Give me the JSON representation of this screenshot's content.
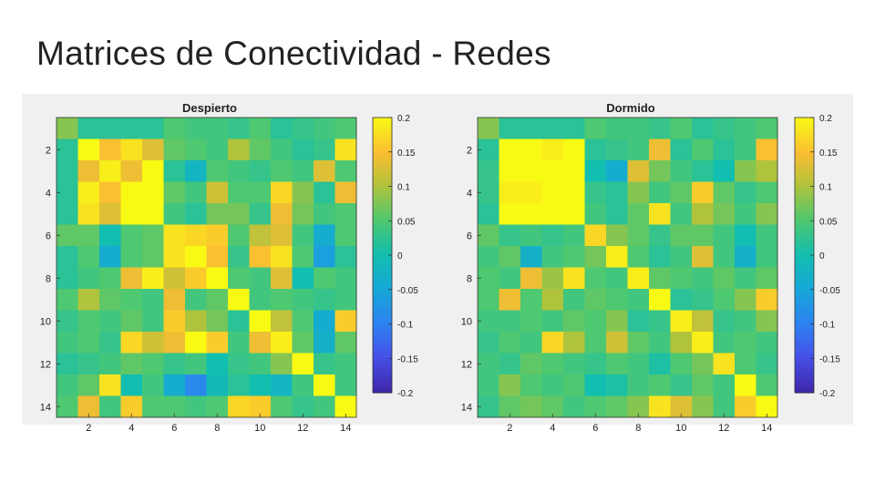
{
  "slide": {
    "title": "Matrices de Conectividad - Redes"
  },
  "chart_data": [
    {
      "type": "heatmap",
      "title": "Despierto",
      "xlabel": "",
      "ylabel": "",
      "x_ticks": [
        "2",
        "4",
        "6",
        "8",
        "10",
        "12",
        "14"
      ],
      "y_ticks": [
        "2",
        "4",
        "6",
        "8",
        "10",
        "12",
        "14"
      ],
      "colorbar_ticks": [
        "0.2",
        "0.15",
        "0.1",
        "0.05",
        "0",
        "-0.05",
        "-0.1",
        "-0.15",
        "-0.2"
      ],
      "clim": [
        -0.2,
        0.2
      ],
      "colormap": "parula",
      "matrix": [
        [
          0.08,
          0.02,
          0.02,
          0.02,
          0.02,
          0.05,
          0.04,
          0.04,
          0.03,
          0.05,
          0.02,
          0.03,
          0.04,
          0.05
        ],
        [
          0.02,
          0.2,
          0.15,
          0.18,
          0.13,
          0.06,
          0.05,
          0.04,
          0.1,
          0.06,
          0.04,
          0.02,
          0.03,
          0.18
        ],
        [
          0.02,
          0.14,
          0.19,
          0.14,
          0.2,
          0.02,
          -0.02,
          0.05,
          0.04,
          0.03,
          0.05,
          0.04,
          0.13,
          0.05
        ],
        [
          0.02,
          0.19,
          0.15,
          0.2,
          0.2,
          0.06,
          0.04,
          0.12,
          0.05,
          0.05,
          0.17,
          0.08,
          0.02,
          0.14
        ],
        [
          0.02,
          0.18,
          0.13,
          0.2,
          0.2,
          0.04,
          0.02,
          0.07,
          0.07,
          0.03,
          0.14,
          0.07,
          0.04,
          0.05
        ],
        [
          0.06,
          0.06,
          0.0,
          0.05,
          0.06,
          0.18,
          0.17,
          0.16,
          0.05,
          0.11,
          0.13,
          0.04,
          -0.04,
          0.05
        ],
        [
          0.02,
          0.05,
          -0.04,
          0.05,
          0.06,
          0.18,
          0.2,
          0.15,
          0.03,
          0.15,
          0.18,
          0.05,
          -0.06,
          0.02
        ],
        [
          0.02,
          0.04,
          0.05,
          0.14,
          0.19,
          0.12,
          0.16,
          0.2,
          0.05,
          0.04,
          0.13,
          0.0,
          0.05,
          0.04
        ],
        [
          0.05,
          0.1,
          0.06,
          0.05,
          0.04,
          0.14,
          0.04,
          0.06,
          0.2,
          0.04,
          0.05,
          0.04,
          0.03,
          0.04
        ],
        [
          0.03,
          0.05,
          0.04,
          0.06,
          0.04,
          0.16,
          0.1,
          0.07,
          0.02,
          0.2,
          0.11,
          0.05,
          -0.04,
          0.16
        ],
        [
          0.04,
          0.05,
          0.03,
          0.17,
          0.12,
          0.14,
          0.2,
          0.16,
          0.04,
          0.14,
          0.19,
          0.06,
          -0.03,
          0.06
        ],
        [
          0.02,
          0.03,
          0.04,
          0.06,
          0.05,
          0.03,
          0.04,
          0.0,
          0.03,
          0.04,
          0.08,
          0.2,
          0.03,
          0.04
        ],
        [
          0.04,
          0.06,
          0.18,
          0.0,
          0.04,
          -0.04,
          -0.09,
          -0.01,
          0.02,
          0.0,
          -0.02,
          0.04,
          0.2,
          0.04
        ],
        [
          0.05,
          0.14,
          0.04,
          0.16,
          0.05,
          0.05,
          0.04,
          0.05,
          0.17,
          0.16,
          0.05,
          0.03,
          0.04,
          0.2
        ]
      ]
    },
    {
      "type": "heatmap",
      "title": "Dormido",
      "xlabel": "",
      "ylabel": "",
      "x_ticks": [
        "2",
        "4",
        "6",
        "8",
        "10",
        "12",
        "14"
      ],
      "y_ticks": [
        "2",
        "4",
        "6",
        "8",
        "10",
        "12",
        "14"
      ],
      "colorbar_ticks": [
        "0.2",
        "0.15",
        "0.1",
        "0.05",
        "0",
        "-0.05",
        "-0.1",
        "-0.15",
        "-0.2"
      ],
      "clim": [
        -0.2,
        0.2
      ],
      "colormap": "parula",
      "matrix": [
        [
          0.08,
          0.02,
          0.02,
          0.02,
          0.02,
          0.05,
          0.04,
          0.04,
          0.03,
          0.05,
          0.02,
          0.03,
          0.04,
          0.05
        ],
        [
          0.02,
          0.2,
          0.2,
          0.19,
          0.2,
          0.02,
          0.03,
          0.04,
          0.14,
          0.02,
          0.05,
          0.02,
          0.04,
          0.15
        ],
        [
          0.03,
          0.2,
          0.2,
          0.2,
          0.2,
          0.0,
          -0.04,
          0.13,
          0.07,
          0.04,
          0.02,
          0.0,
          0.08,
          0.1
        ],
        [
          0.03,
          0.19,
          0.19,
          0.2,
          0.2,
          0.03,
          0.02,
          0.08,
          0.04,
          0.06,
          0.16,
          0.06,
          0.03,
          0.05
        ],
        [
          0.02,
          0.2,
          0.2,
          0.2,
          0.2,
          0.04,
          0.02,
          0.06,
          0.18,
          0.04,
          0.1,
          0.07,
          0.04,
          0.08
        ],
        [
          0.06,
          0.03,
          0.04,
          0.03,
          0.04,
          0.17,
          0.08,
          0.06,
          0.03,
          0.06,
          0.06,
          0.04,
          0.0,
          0.04
        ],
        [
          0.04,
          0.06,
          -0.03,
          0.04,
          0.05,
          0.07,
          0.19,
          0.05,
          0.02,
          0.04,
          0.13,
          0.04,
          -0.03,
          0.04
        ],
        [
          0.05,
          0.04,
          0.14,
          0.09,
          0.18,
          0.05,
          0.04,
          0.19,
          0.06,
          0.05,
          0.04,
          0.06,
          0.04,
          0.06
        ],
        [
          0.05,
          0.14,
          0.05,
          0.1,
          0.04,
          0.06,
          0.05,
          0.04,
          0.2,
          0.02,
          0.03,
          0.05,
          0.08,
          0.16
        ],
        [
          0.04,
          0.04,
          0.05,
          0.04,
          0.06,
          0.05,
          0.08,
          0.02,
          0.03,
          0.19,
          0.11,
          0.03,
          0.04,
          0.08
        ],
        [
          0.03,
          0.05,
          0.04,
          0.17,
          0.1,
          0.05,
          0.12,
          0.06,
          0.04,
          0.1,
          0.19,
          0.04,
          0.05,
          0.04
        ],
        [
          0.04,
          0.03,
          0.06,
          0.05,
          0.04,
          0.03,
          0.05,
          0.04,
          0.01,
          0.05,
          0.07,
          0.18,
          0.05,
          0.03
        ],
        [
          0.04,
          0.08,
          0.05,
          0.04,
          0.05,
          0.0,
          0.01,
          0.04,
          0.05,
          0.03,
          0.06,
          0.04,
          0.2,
          0.05
        ],
        [
          0.03,
          0.06,
          0.07,
          0.06,
          0.04,
          0.05,
          0.06,
          0.08,
          0.18,
          0.13,
          0.08,
          0.04,
          0.16,
          0.2
        ]
      ]
    }
  ]
}
